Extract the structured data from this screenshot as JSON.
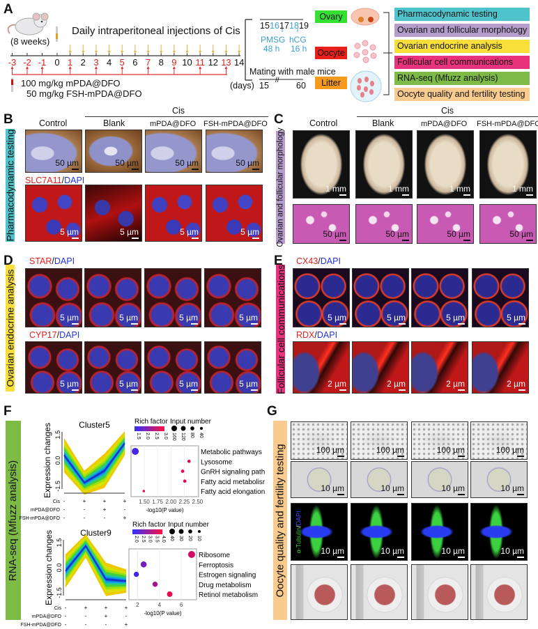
{
  "panels": {
    "A": "A",
    "B": "B",
    "C": "C",
    "D": "D",
    "E": "E",
    "F": "F",
    "G": "G"
  },
  "A": {
    "mouse_age": "(8 weeks)",
    "injection_title": "Daily intraperitoneal injections of Cis",
    "days": [
      -3,
      -2,
      -1,
      0,
      1,
      2,
      3,
      4,
      5,
      6,
      7,
      8,
      9,
      10,
      11,
      12,
      13,
      14
    ],
    "treatment_days": [
      -3,
      -2,
      -1,
      1,
      3,
      5,
      7,
      9,
      11,
      13
    ],
    "cis_days": [
      1,
      2,
      3,
      4,
      5,
      6,
      7,
      8,
      9,
      10,
      11,
      12,
      13,
      14
    ],
    "dose1": "100 mg/kg mPDA@DFO",
    "dose2": "50 mg/kg FSH-mPDA@DFO",
    "days_unit": "(days)",
    "stim_days": [
      "15",
      "16",
      "17",
      "18",
      "19"
    ],
    "pmsg": "PMSG",
    "pmsg_time": "48 h",
    "hcg": "hCG",
    "hcg_time": "16 h",
    "mating": "Mating with male mice",
    "mating_start": "15",
    "mating_end": "60",
    "samples": [
      {
        "label": "Ovary",
        "color": "#33e033"
      },
      {
        "label": "Oocyte",
        "color": "#e8201c"
      },
      {
        "label": "Litter",
        "color": "#f59a1b"
      }
    ],
    "analyses": [
      {
        "label": "Pharmacodynamic testing",
        "color": "#4fc3cb"
      },
      {
        "label": "Ovarian and follicular morphology",
        "color": "#b49ccb"
      },
      {
        "label": "Ovarian endocrine analysis",
        "color": "#f8df3a"
      },
      {
        "label": "Follicular cell communications",
        "color": "#e8327c"
      },
      {
        "label": "RNA-seq (Mfuzz analysis)",
        "color": "#7dba46"
      },
      {
        "label": "Oocyte quality and fertility testing",
        "color": "#f9cb8e"
      }
    ]
  },
  "groups": {
    "cis": "Cis",
    "columns": [
      "Control",
      "Blank",
      "mPDA@DFO",
      "FSH-mPDA@DFO"
    ]
  },
  "B": {
    "side_label": "Pharmacodynamic testing",
    "stain_marker": "SLC7A11",
    "stain_sep": "/",
    "stain_dapi": "DAPI",
    "scale_top": "50 µm",
    "scale_bottom": "5 µm"
  },
  "C": {
    "side_label": "Ovarian and follicular morphology",
    "scale_top": "1 mm",
    "scale_bottom": "50 µm"
  },
  "D": {
    "side_label": "Ovarian endocrine analysis",
    "stain1_marker": "STAR",
    "stain2_marker": "CYP17",
    "stain_sep": "/",
    "stain_dapi": "DAPI",
    "scale": "5 µm"
  },
  "E": {
    "side_label": "Follicular cell communications",
    "stain1_marker": "CX43",
    "stain2_marker": "RDX",
    "stain_sep": "/",
    "stain_dapi": "DAPI",
    "scale_top": "5 µm",
    "scale_bottom": "2 µm"
  },
  "F": {
    "side_label": "RNA-seq (Mfuzz analysis)"
  },
  "G": {
    "side_label": "Oocyte quality and fertility testing",
    "scale_row1": "100 µm",
    "scale_row2": "10 µm",
    "scale_row3": "10 µm",
    "tubulin_label": "α-Tubulin",
    "tubulin_sep": "/",
    "tubulin_dapi": "DAPI"
  },
  "chart_data": [
    {
      "type": "line",
      "title": "Cluster5",
      "ylabel": "Expression changes",
      "yticks": [
        "1.5",
        "0.0",
        "-1.5"
      ],
      "ylim": [
        -1.5,
        1.5
      ],
      "conditions": [
        {
          "name": "Cis",
          "marks": [
            "-",
            "+",
            "+",
            "+"
          ]
        },
        {
          "name": "mPDA@DFO",
          "marks": [
            "-",
            "-",
            "+",
            "-"
          ]
        },
        {
          "name": "FSH-mPDA@DFO",
          "marks": [
            "-",
            "-",
            "-",
            "+"
          ]
        }
      ],
      "centroid": [
        0.3,
        -1.3,
        -0.6,
        1.0
      ]
    },
    {
      "type": "scatter",
      "legend_color_title": "Rich factor",
      "color_ticks": [
        "1.5",
        "2.0",
        "2.5",
        "3.0"
      ],
      "legend_size_title": "Input number",
      "size_ticks": [
        "160",
        "120",
        "80",
        "40"
      ],
      "xlabel": "-log10(P value)",
      "xticks": [
        "1.50",
        "1.75",
        "2.00",
        "2.25",
        "2.50"
      ],
      "xlim": [
        1.25,
        2.52
      ],
      "points": [
        {
          "term": "Metabolic pathways",
          "x": 1.33,
          "size": 160,
          "rich": 1.4
        },
        {
          "term": "Lysosome",
          "x": 2.34,
          "size": 35,
          "rich": 2.9
        },
        {
          "term": "GnRH signaling pathway",
          "x": 2.22,
          "size": 35,
          "rich": 2.8
        },
        {
          "term": "Fatty acid metabolism",
          "x": 2.26,
          "size": 35,
          "rich": 2.9
        },
        {
          "term": "Fatty acid elongation",
          "x": 1.49,
          "size": 20,
          "rich": 3.0
        }
      ]
    },
    {
      "type": "line",
      "title": "Cluster9",
      "ylabel": "Expression changes",
      "yticks": [
        "1.5",
        "0.0",
        "-1.5"
      ],
      "ylim": [
        -1.5,
        1.5
      ],
      "conditions": [
        {
          "name": "Cis",
          "marks": [
            "-",
            "+",
            "+",
            "+"
          ]
        },
        {
          "name": "mPDA@DFO",
          "marks": [
            "-",
            "-",
            "+",
            "-"
          ]
        },
        {
          "name": "FSH-mPDA@DFO",
          "marks": [
            "-",
            "-",
            "-",
            "+"
          ]
        }
      ],
      "centroid": [
        -0.2,
        1.3,
        -0.7,
        -0.8
      ]
    },
    {
      "type": "scatter",
      "legend_color_title": "Rich factor",
      "color_ticks": [
        "2.0",
        "2.5",
        "3.0",
        "3.5",
        "4.0"
      ],
      "legend_size_title": "Input number",
      "size_ticks": [
        "40",
        "30",
        "20",
        "10"
      ],
      "xlabel": "-log10(P value)",
      "xticks": [
        "2",
        "4",
        "6"
      ],
      "xlim": [
        1.2,
        7.4
      ],
      "points": [
        {
          "term": "Ribosome",
          "x": 6.95,
          "size": 40,
          "rich": 3.6
        },
        {
          "term": "Ferroptosis",
          "x": 2.55,
          "size": 30,
          "rich": 2.6
        },
        {
          "term": "Estrogen signaling",
          "x": 1.88,
          "size": 22,
          "rich": 2.1
        },
        {
          "term": "Drug metabolism",
          "x": 3.6,
          "size": 22,
          "rich": 3.2
        },
        {
          "term": "Retinol metabolism",
          "x": 4.94,
          "size": 25,
          "rich": 3.9
        }
      ]
    }
  ]
}
